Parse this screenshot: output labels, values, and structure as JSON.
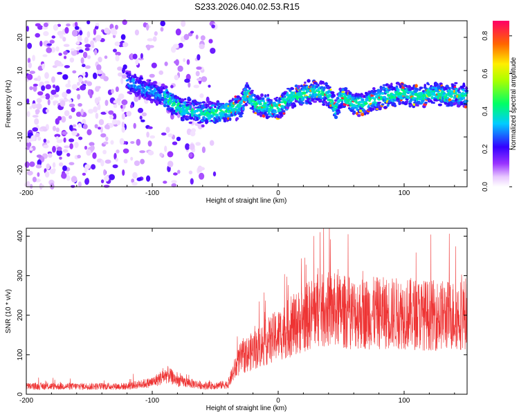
{
  "title": "S233.2026.040.02.53.R15",
  "chart_data": [
    {
      "type": "heatmap",
      "name": "spectrogram",
      "xlabel": "Height of straight line (km)",
      "ylabel": "Frequency (Hz)",
      "xlim": [
        -200,
        150
      ],
      "ylim": [
        -25,
        25
      ],
      "xticks": [
        -200,
        -100,
        0,
        100
      ],
      "yticks": [
        -20,
        -10,
        0,
        10,
        20
      ],
      "ridge": {
        "description_points_x": [
          -120,
          -110,
          -100,
          -90,
          -80,
          -70,
          -60,
          -50,
          -40,
          -30,
          -25,
          -20,
          -10,
          0,
          10,
          20,
          30,
          40,
          45,
          50,
          60,
          70,
          80,
          90,
          100,
          110,
          120,
          130,
          140,
          150
        ],
        "freq": [
          7,
          5,
          4,
          2,
          -1,
          -2,
          -3,
          -3,
          -2,
          -1,
          3,
          0.5,
          -1,
          -1.5,
          2,
          3,
          3.5,
          3,
          -2,
          2,
          0,
          0,
          2,
          2.5,
          3,
          2,
          3,
          3,
          2.5,
          2.5
        ]
      },
      "colorbar": {
        "label": "Normalized spectral amplitude",
        "range": [
          0.0,
          0.88
        ],
        "ticks": [
          "0.0",
          "0.2",
          "0.4",
          "0.6",
          "0.8"
        ]
      }
    },
    {
      "type": "line",
      "name": "snr",
      "xlabel": "Height of straight line (km)",
      "ylabel": "SNR (10 * v/v)",
      "xlim": [
        -200,
        150
      ],
      "ylim": [
        0,
        420
      ],
      "xticks": [
        -200,
        -100,
        0,
        100
      ],
      "yticks": [
        0,
        100,
        200,
        300,
        400
      ],
      "color": "#ee3333",
      "envelope_x": [
        -200,
        -120,
        -100,
        -88,
        -80,
        -70,
        -60,
        -50,
        -40,
        -35,
        -30,
        -20,
        -10,
        0,
        10,
        20,
        25,
        30,
        35,
        40,
        50,
        60,
        80,
        100,
        120,
        140,
        150
      ],
      "envelope_mean": [
        20,
        20,
        30,
        50,
        35,
        28,
        22,
        22,
        25,
        60,
        90,
        110,
        130,
        150,
        170,
        190,
        200,
        215,
        210,
        215,
        210,
        205,
        205,
        205,
        200,
        200,
        205
      ]
    }
  ]
}
